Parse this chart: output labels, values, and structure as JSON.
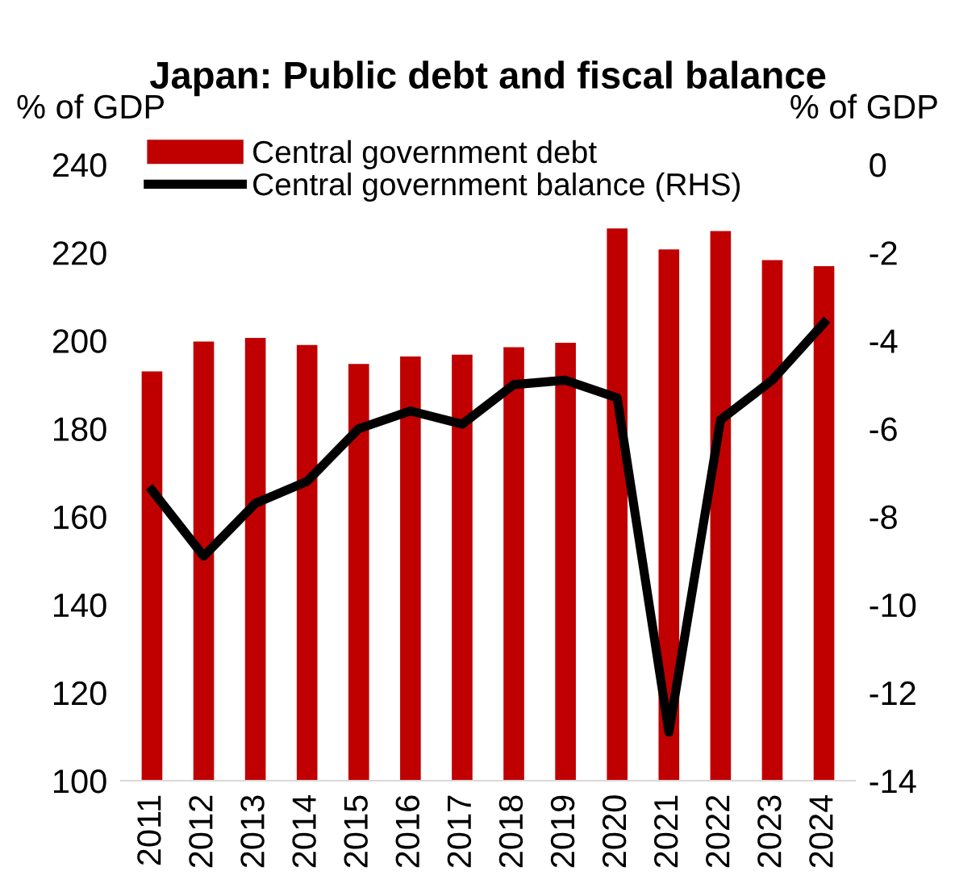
{
  "chart_data": {
    "type": "bar",
    "title": "Japan: Public debt and fiscal balance",
    "ylabel": "% of GDP",
    "y2label": "% of GDP",
    "categories": [
      "2011",
      "2012",
      "2013",
      "2014",
      "2015",
      "2016",
      "2017",
      "2018",
      "2019",
      "2020",
      "2021",
      "2022",
      "2023",
      "2024"
    ],
    "series": [
      {
        "name": "Central government debt",
        "color": "#c00000",
        "values": [
          193,
          199.8,
          200.6,
          199,
          194.7,
          196.4,
          196.8,
          198.5,
          199.5,
          225.5,
          220.7,
          224.9,
          218.3,
          216.9
        ]
      },
      {
        "name": "Central government balance (RHS)",
        "type": "line",
        "axis": "y2",
        "color": "#000000",
        "values": [
          -7.4,
          -8.9,
          -7.7,
          -7.2,
          -6.0,
          -5.6,
          -5.9,
          -5.0,
          -4.9,
          -5.3,
          -12.9,
          -5.8,
          -4.9,
          -3.6
        ]
      }
    ],
    "ylim": [
      100,
      240
    ],
    "yticks": [
      100,
      120,
      140,
      160,
      180,
      200,
      220,
      240
    ],
    "y2lim": [
      -14,
      0
    ],
    "y2ticks": [
      -14,
      -12,
      -10,
      -8,
      -6,
      -4,
      -2,
      0
    ],
    "legend": "top left",
    "grid": false,
    "marker": "none",
    "line_style": "solid"
  }
}
